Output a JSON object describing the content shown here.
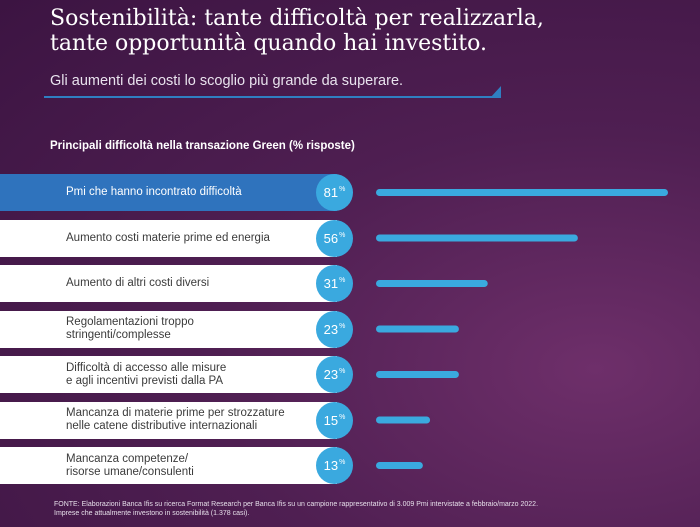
{
  "title_line1": "Sostenibilità: tante difficoltà per realizzarla,",
  "title_line2": "tante opportunità quando hai investito.",
  "subtitle": "Gli aumenti dei costi lo scoglio più grande da superare.",
  "chart_heading": "Principali difficoltà nella transazione Green  (% risposte)",
  "colors": {
    "accent": "#3aa9df",
    "highlight_row": "#2f73bd",
    "background": "#4f1f52"
  },
  "chart_data": {
    "type": "bar",
    "orientation": "horizontal",
    "title": "Principali difficoltà nella transazione Green  (% risposte)",
    "unit": "%",
    "xlim": [
      0,
      100
    ],
    "categories": [
      [
        "Pmi che hanno incontrato difficoltà"
      ],
      [
        "Aumento costi materie prime ed energia"
      ],
      [
        "Aumento di altri costi diversi"
      ],
      [
        "Regolamentazioni troppo",
        "stringenti/complesse"
      ],
      [
        "Difficoltà di accesso alle misure",
        "e agli incentivi previsti dalla PA"
      ],
      [
        "Mancanza di materie prime per strozzature",
        "nelle catene distributive internazionali"
      ],
      [
        "Mancanza competenze/",
        "risorse umane/consulenti"
      ]
    ],
    "values": [
      81,
      56,
      31,
      23,
      23,
      15,
      13
    ],
    "highlighted": [
      0
    ]
  },
  "footnote_line1": "FONTE: Elaborazioni Banca Ifis su ricerca Format Research per Banca Ifis su un campione rappresentativo di 3.009 Pmi intervistate a febbraio/marzo 2022.",
  "footnote_line2": "Imprese che attualmente investono in sostenibilità (1.378 casi)."
}
